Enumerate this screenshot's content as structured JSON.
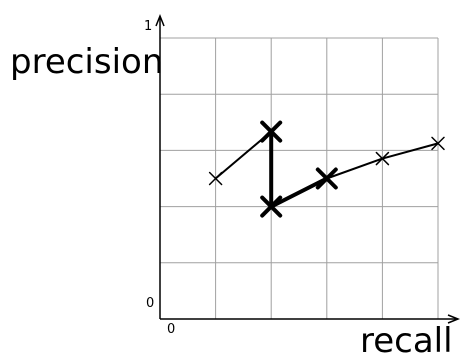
{
  "chart_data": {
    "type": "line",
    "title": "",
    "xlabel": "recall",
    "ylabel": "precision",
    "xlim": [
      0,
      1
    ],
    "ylim": [
      0,
      1
    ],
    "grid": true,
    "x_tick_labels": [
      "0"
    ],
    "y_tick_labels": [
      "0",
      "1"
    ],
    "series": [
      {
        "x": [
          0.2,
          0.4,
          0.4,
          0.6,
          0.8,
          1.0
        ],
        "y": [
          0.5,
          0.667,
          0.4,
          0.5,
          0.571,
          0.625
        ],
        "emphasis": [
          false,
          true,
          true,
          true,
          false,
          false
        ]
      }
    ]
  }
}
